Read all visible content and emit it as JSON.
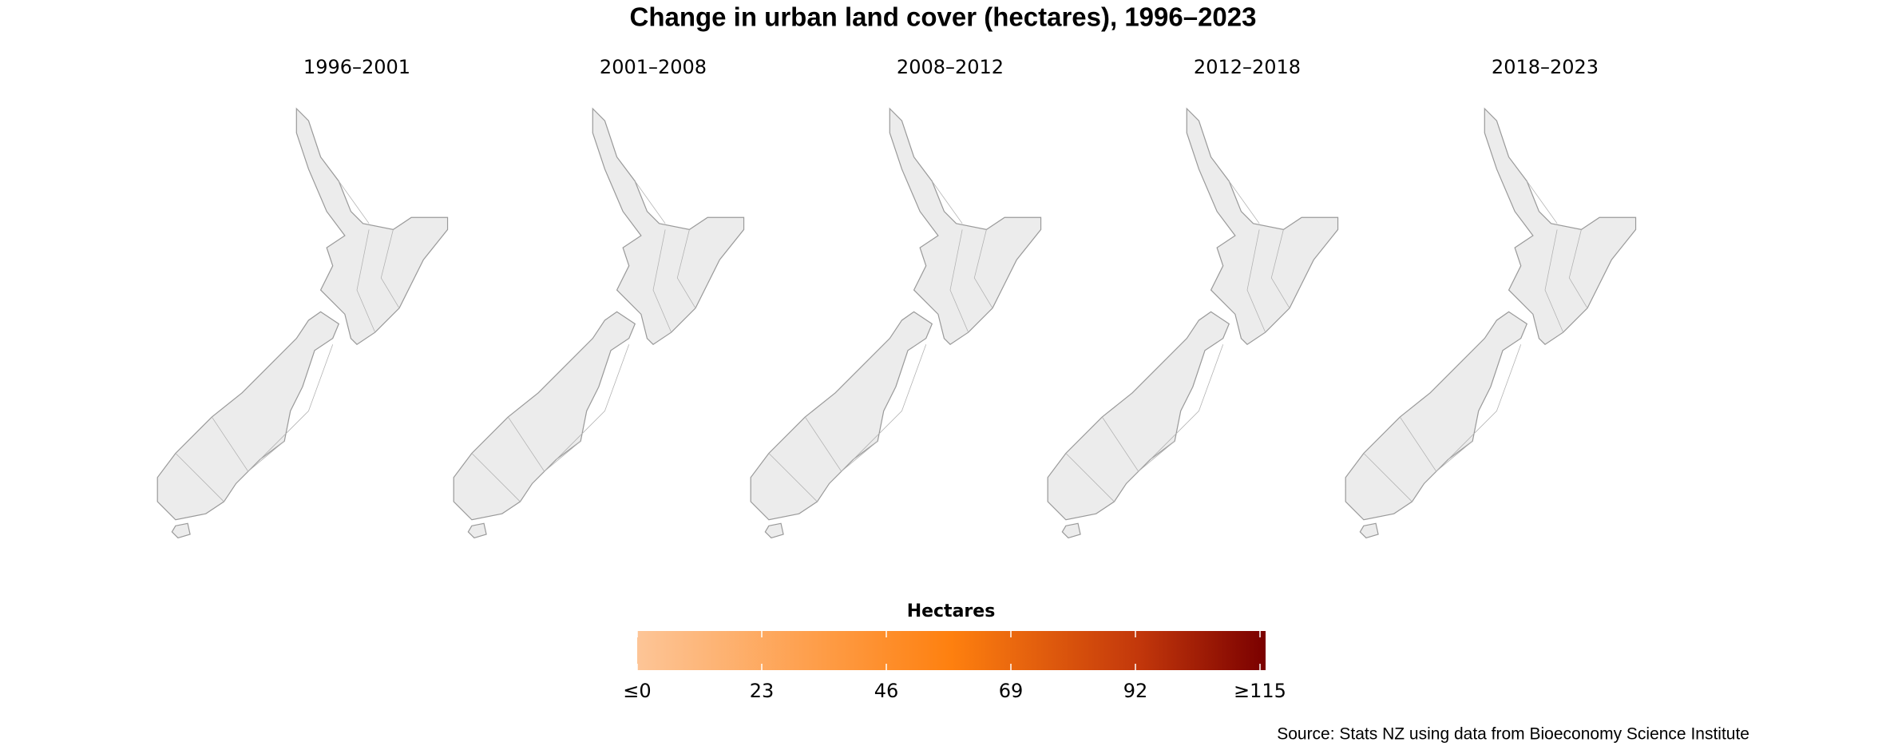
{
  "title": "Change in urban land cover (hectares), 1996–2023",
  "panels": [
    {
      "title": "1996–2001"
    },
    {
      "title": "2001–2008"
    },
    {
      "title": "2008–2012"
    },
    {
      "title": "2012–2018"
    },
    {
      "title": "2018–2023"
    }
  ],
  "legend": {
    "title": "Hectares",
    "lim": [
      0,
      115
    ],
    "ticks": [
      {
        "value": 0,
        "label": "≤0"
      },
      23,
      46,
      69,
      92,
      {
        "value": 115,
        "label": "≥115"
      }
    ]
  },
  "source": "Source: Stats NZ using data from Bioeconomy Science Institute"
}
